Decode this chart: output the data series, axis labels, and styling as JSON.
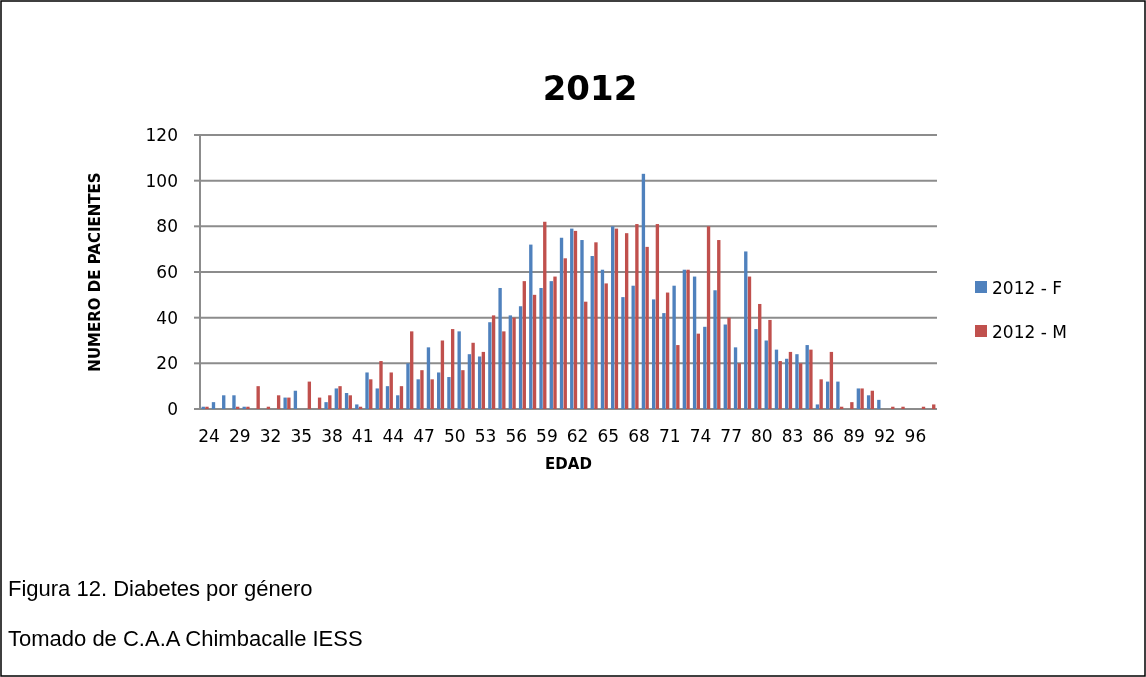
{
  "chart_data": {
    "type": "bar",
    "title": "2012",
    "xlabel": "EDAD",
    "ylabel": "NUMERO DE PACIENTES",
    "categories": [
      "24",
      null,
      null,
      "29",
      null,
      null,
      "32",
      null,
      null,
      "35",
      null,
      null,
      "38",
      null,
      null,
      "41",
      null,
      null,
      "44",
      null,
      null,
      "47",
      null,
      null,
      "50",
      null,
      null,
      "53",
      null,
      null,
      "56",
      null,
      null,
      "59",
      null,
      null,
      "62",
      null,
      null,
      "65",
      null,
      null,
      "68",
      null,
      null,
      "71",
      null,
      null,
      "74",
      null,
      null,
      "77",
      null,
      null,
      "80",
      null,
      null,
      "83",
      null,
      null,
      "86",
      null,
      null,
      "89",
      null,
      null,
      "92",
      null,
      null,
      "96",
      null,
      null
    ],
    "series": [
      {
        "name": "2012 - F",
        "color": "#4f81bd",
        "values": [
          1,
          3,
          6,
          6,
          1,
          0,
          0,
          0,
          5,
          8,
          0,
          0,
          3,
          9,
          7,
          2,
          16,
          9,
          10,
          6,
          20,
          13,
          27,
          16,
          14,
          34,
          24,
          23,
          38,
          53,
          41,
          45,
          72,
          53,
          56,
          75,
          79,
          74,
          67,
          61,
          80,
          49,
          54,
          103,
          48,
          42,
          54,
          61,
          58,
          36,
          52,
          37,
          27,
          69,
          35,
          30,
          26,
          22,
          24,
          28,
          2,
          12,
          12,
          0,
          9,
          6,
          4,
          0,
          0,
          0,
          0,
          0
        ]
      },
      {
        "name": "2012 - M",
        "color": "#c0504d",
        "values": [
          1,
          0,
          0,
          1,
          1,
          10,
          1,
          6,
          5,
          0,
          12,
          5,
          6,
          10,
          6,
          1,
          13,
          21,
          16,
          10,
          34,
          17,
          13,
          30,
          35,
          17,
          29,
          25,
          41,
          34,
          40,
          56,
          50,
          82,
          58,
          66,
          78,
          47,
          73,
          55,
          79,
          77,
          81,
          71,
          81,
          51,
          28,
          61,
          33,
          80,
          74,
          40,
          20,
          58,
          46,
          39,
          21,
          25,
          20,
          26,
          13,
          25,
          1,
          3,
          9,
          8,
          0,
          1,
          1,
          0,
          1,
          2
        ]
      }
    ],
    "ylim": [
      0,
      120
    ],
    "yticks": [
      0,
      20,
      40,
      60,
      80,
      100,
      120
    ],
    "grid": "y",
    "legend": "right",
    "annotations": [
      "Figura 12. Diabetes por género",
      "Tomado de C.A.A Chimbacalle IESS"
    ]
  }
}
